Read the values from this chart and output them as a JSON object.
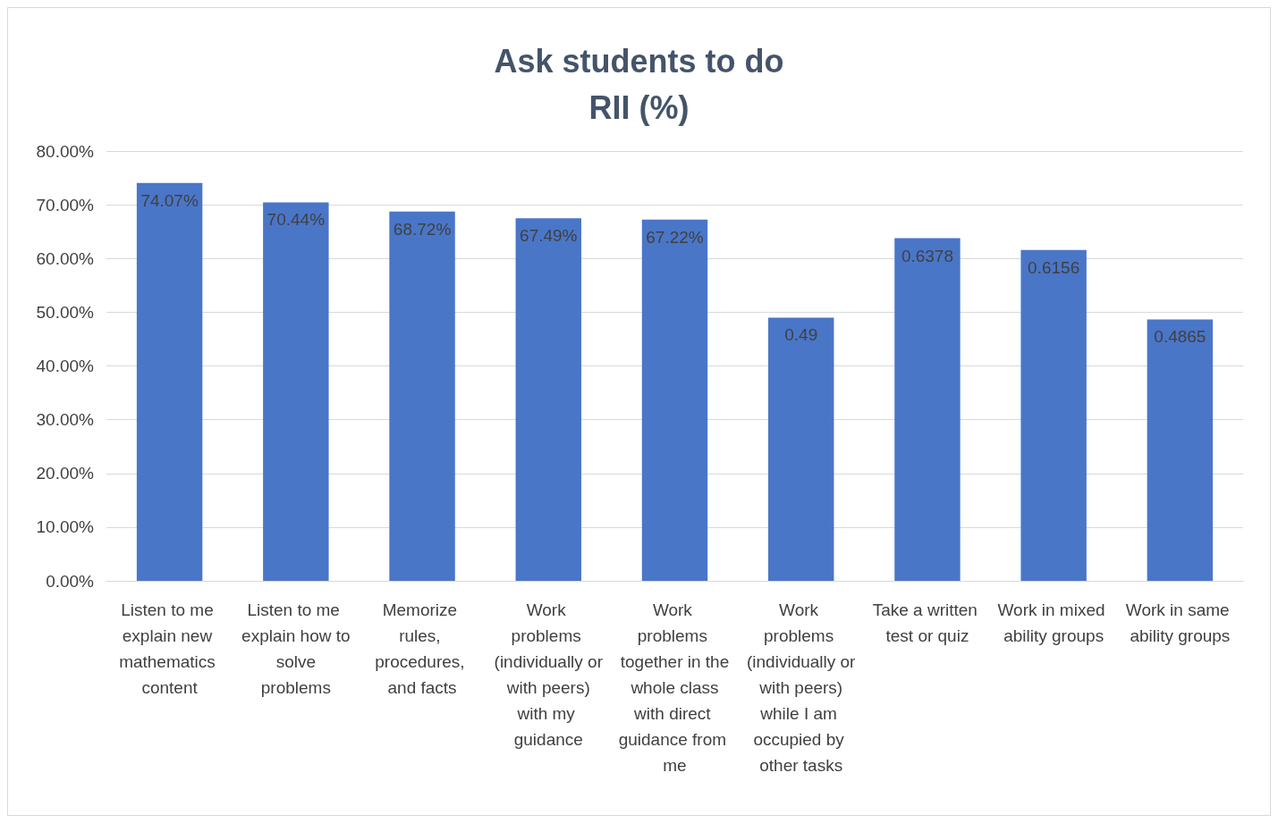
{
  "chart_data": {
    "type": "bar",
    "title": "Ask students to do\nRII (%)",
    "categories": [
      "Listen to me explain new mathematics content",
      "Listen to me explain how to solve problems",
      "Memorize rules, procedures, and facts",
      "Work problems (individually or with peers) with my guidance",
      "Work problems together in the whole class with direct guidance from me",
      "Work problems (individually or with peers) while I am occupied by other tasks",
      "Take a written test or quiz",
      "Work in mixed ability groups",
      "Work in same ability groups"
    ],
    "values": [
      0.7407,
      0.7044,
      0.6872,
      0.6749,
      0.6722,
      0.49,
      0.6378,
      0.6156,
      0.4865
    ],
    "value_labels": [
      "74.07%",
      "70.44%",
      "68.72%",
      "67.49%",
      "67.22%",
      "0.49",
      "0.6378",
      "0.6156",
      "0.4865"
    ],
    "color": "#4a76c8",
    "ylim": [
      0,
      0.8
    ],
    "yticks": [
      {
        "value": 0,
        "label": "0.00%"
      },
      {
        "value": 0.1,
        "label": "10.00%"
      },
      {
        "value": 0.2,
        "label": "20.00%"
      },
      {
        "value": 0.3,
        "label": "30.00%"
      },
      {
        "value": 0.4,
        "label": "40.00%"
      },
      {
        "value": 0.5,
        "label": "50.00%"
      },
      {
        "value": 0.6,
        "label": "60.00%"
      },
      {
        "value": 0.7,
        "label": "70.00%"
      },
      {
        "value": 0.8,
        "label": "80.00%"
      }
    ],
    "grid": "y"
  }
}
